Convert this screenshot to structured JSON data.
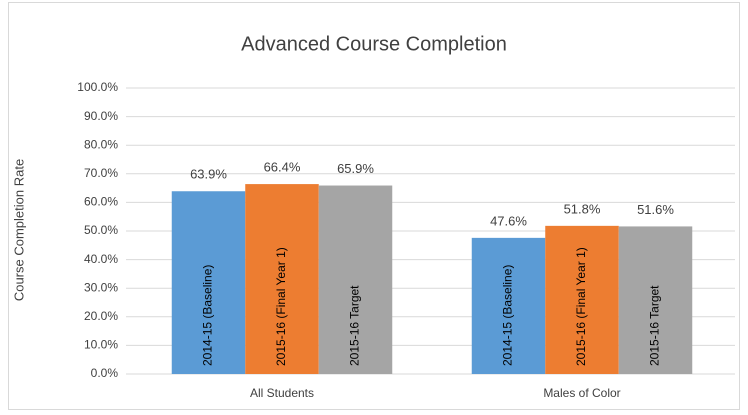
{
  "chart_data": {
    "type": "bar",
    "title": "Advanced Course Completion",
    "y_label": "Course Completion Rate",
    "categories": [
      "All Students",
      "Males of Color"
    ],
    "series": [
      {
        "name": "2014-15 (Baseline)",
        "color": "#5b9bd5",
        "values": [
          63.9,
          47.6
        ],
        "value_labels": [
          "63.9%",
          "47.6%"
        ]
      },
      {
        "name": "2015-16 (Final Year 1)",
        "color": "#ed7d31",
        "values": [
          66.4,
          51.8
        ],
        "value_labels": [
          "66.4%",
          "51.8%"
        ]
      },
      {
        "name": "2015-16 Target",
        "color": "#a5a5a5",
        "values": [
          65.9,
          51.6
        ],
        "value_labels": [
          "65.9%",
          "51.6%"
        ]
      }
    ],
    "ylim": [
      0,
      100
    ],
    "yticks": [
      {
        "value": 0,
        "label": "0.0%"
      },
      {
        "value": 10,
        "label": "10.0%"
      },
      {
        "value": 20,
        "label": "20.0%"
      },
      {
        "value": 30,
        "label": "30.0%"
      },
      {
        "value": 40,
        "label": "40.0%"
      },
      {
        "value": 50,
        "label": "50.0%"
      },
      {
        "value": 60,
        "label": "60.0%"
      },
      {
        "value": 70,
        "label": "70.0%"
      },
      {
        "value": 80,
        "label": "80.0%"
      },
      {
        "value": 90,
        "label": "90.0%"
      },
      {
        "value": 100,
        "label": "100.0%"
      }
    ],
    "grid": true
  }
}
